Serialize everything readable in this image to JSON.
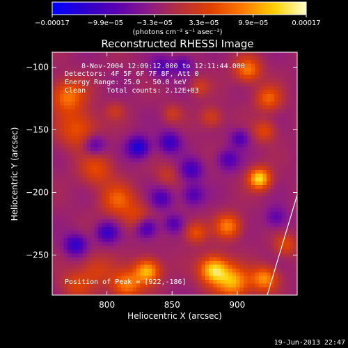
{
  "chart_data": {
    "type": "heatmap",
    "title": "Reconstructed RHESSI Image",
    "xlabel": "Heliocentric X (arcsec)",
    "ylabel": "Heliocentric Y (arcsec)",
    "xlim": [
      758,
      946
    ],
    "ylim": [
      -282,
      -88
    ],
    "x_ticks": [
      800,
      850,
      900
    ],
    "x_tick_labels": [
      "800",
      "850",
      "900"
    ],
    "y_ticks": [
      -100,
      -150,
      -200,
      -250
    ],
    "y_tick_labels": [
      "−100",
      "−150",
      "−200",
      "−250"
    ],
    "colorbar": {
      "range": [
        -0.00017,
        0.00017
      ],
      "ticks": [
        -0.00017,
        -9.9e-05,
        -3.3e-05,
        3.3e-05,
        9.9e-05,
        0.00017
      ],
      "tick_labels": [
        "−0.00017",
        "−9.9e−05",
        "−3.3e−05",
        "3.3e−05",
        "9.9e−05",
        "0.00017"
      ],
      "unit_label": "(photons cm⁻² s⁻¹ asec⁻²)",
      "colors": [
        "#0000ff",
        "#2b00cc",
        "#5a00b0",
        "#8a1a8a",
        "#b5303d",
        "#e04000",
        "#ff7a00",
        "#ffd000",
        "#ffffcc"
      ]
    },
    "sources": [
      {
        "x": 770,
        "y": -123,
        "amp": 0.000105,
        "sigma": 9
      },
      {
        "x": 778,
        "y": -150,
        "amp": 8e-05,
        "sigma": 11
      },
      {
        "x": 792,
        "y": -182,
        "amp": 7e-05,
        "sigma": 9
      },
      {
        "x": 808,
        "y": -206,
        "amp": 8.5e-05,
        "sigma": 9
      },
      {
        "x": 823,
        "y": -220,
        "amp": 6e-05,
        "sigma": 8
      },
      {
        "x": 831,
        "y": -263,
        "amp": 0.000145,
        "sigma": 7
      },
      {
        "x": 815,
        "y": -274,
        "amp": 0.00011,
        "sigma": 8
      },
      {
        "x": 792,
        "y": -262,
        "amp": 6e-05,
        "sigma": 9
      },
      {
        "x": 776,
        "y": -274,
        "amp": 6e-05,
        "sigma": 8
      },
      {
        "x": 882,
        "y": -262,
        "amp": 0.000165,
        "sigma": 8
      },
      {
        "x": 897,
        "y": -272,
        "amp": 0.00013,
        "sigma": 9
      },
      {
        "x": 921,
        "y": -269,
        "amp": 0.00012,
        "sigma": 7
      },
      {
        "x": 868,
        "y": -232,
        "amp": 8e-05,
        "sigma": 6
      },
      {
        "x": 893,
        "y": -227,
        "amp": 0.00011,
        "sigma": 7
      },
      {
        "x": 917,
        "y": -189,
        "amp": 0.000165,
        "sigma": 6
      },
      {
        "x": 937,
        "y": -242,
        "amp": 7e-05,
        "sigma": 6
      },
      {
        "x": 908,
        "y": -102,
        "amp": 0.00011,
        "sigma": 7
      },
      {
        "x": 924,
        "y": -125,
        "amp": 9e-05,
        "sigma": 7
      },
      {
        "x": 921,
        "y": -151,
        "amp": 7e-05,
        "sigma": 6
      },
      {
        "x": 880,
        "y": -140,
        "amp": 6e-05,
        "sigma": 6
      },
      {
        "x": 871,
        "y": -116,
        "amp": 5e-05,
        "sigma": 5
      },
      {
        "x": 850,
        "y": -137,
        "amp": 4.5e-05,
        "sigma": 5
      },
      {
        "x": 806,
        "y": -135,
        "amp": 4e-05,
        "sigma": 5
      },
      {
        "x": 846,
        "y": -186,
        "amp": 4e-05,
        "sigma": 6
      },
      {
        "x": 790,
        "y": -162,
        "amp": -8e-05,
        "sigma": 6
      },
      {
        "x": 824,
        "y": -164,
        "amp": -0.00012,
        "sigma": 6
      },
      {
        "x": 848,
        "y": -160,
        "amp": -9e-05,
        "sigma": 6
      },
      {
        "x": 865,
        "y": -182,
        "amp": -8e-05,
        "sigma": 6
      },
      {
        "x": 893,
        "y": -174,
        "amp": -7e-05,
        "sigma": 6
      },
      {
        "x": 902,
        "y": -157,
        "amp": -7e-05,
        "sigma": 5
      },
      {
        "x": 858,
        "y": -98,
        "amp": -7e-05,
        "sigma": 5
      },
      {
        "x": 842,
        "y": -100,
        "amp": -7e-05,
        "sigma": 6
      },
      {
        "x": 776,
        "y": -242,
        "amp": -0.0001,
        "sigma": 6
      },
      {
        "x": 800,
        "y": -232,
        "amp": -9e-05,
        "sigma": 6
      },
      {
        "x": 830,
        "y": -228,
        "amp": -0.0001,
        "sigma": 6
      },
      {
        "x": 842,
        "y": -205,
        "amp": -7e-05,
        "sigma": 6
      },
      {
        "x": 851,
        "y": -225,
        "amp": -6e-05,
        "sigma": 5
      },
      {
        "x": 866,
        "y": -202,
        "amp": -7e-05,
        "sigma": 6
      },
      {
        "x": 930,
        "y": -220,
        "amp": -6e-05,
        "sigma": 6
      }
    ],
    "limb_line": {
      "x1": 946,
      "y1": -202,
      "x2": 923,
      "y2": -282
    },
    "annotations": [
      "8-Nov-2004 12:09:12.000 to 12:11:44.000",
      "Detectors: 4F 5F 6F 7F 8F, Att 0",
      "Energy Range: 25.0 - 50.0 keV",
      "Clean     Total counts: 2.12E+03",
      "Position of Peak = [922,-186]"
    ],
    "footer_date": "19-Jun-2013 22:47"
  }
}
